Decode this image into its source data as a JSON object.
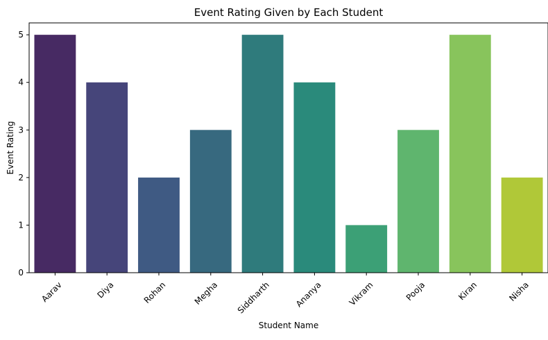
{
  "chart_data": {
    "type": "bar",
    "title": "Event Rating Given by Each Student",
    "xlabel": "Student Name",
    "ylabel": "Event Rating",
    "categories": [
      "Aarav",
      "Diya",
      "Rohan",
      "Megha",
      "Siddharth",
      "Ananya",
      "Vikram",
      "Pooja",
      "Kiran",
      "Nisha"
    ],
    "values": [
      5,
      4,
      2,
      3,
      5,
      4,
      1,
      3,
      5,
      2
    ],
    "colors": [
      "#472a63",
      "#46457a",
      "#3f5a83",
      "#37697f",
      "#2f7b7c",
      "#2a8a7b",
      "#3ca076",
      "#5fb56e",
      "#88c45c",
      "#b0c838"
    ],
    "ylim": [
      0,
      5.25
    ],
    "yticks": [
      0,
      1,
      2,
      3,
      4,
      5
    ],
    "grid": false,
    "legend": "none"
  }
}
